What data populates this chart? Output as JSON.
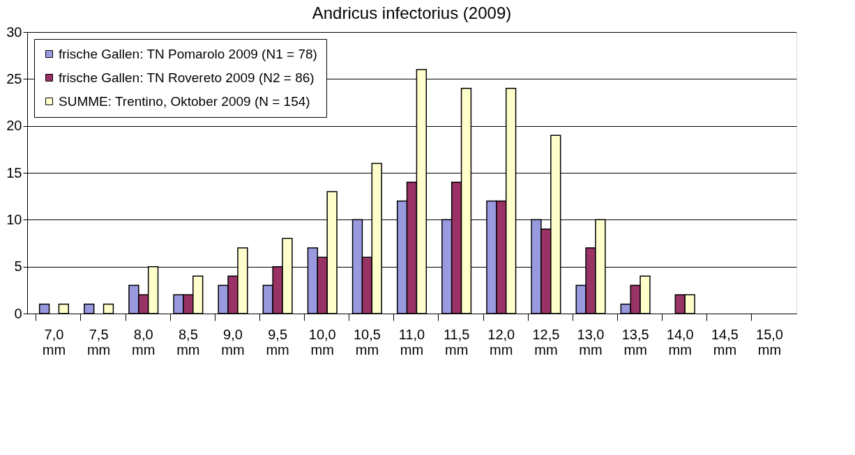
{
  "chart_data": {
    "type": "bar",
    "title": "Andricus infectorius (2009)",
    "categories": [
      "7,0 mm",
      "7,5 mm",
      "8,0 mm",
      "8,5 mm",
      "9,0 mm",
      "9,5 mm",
      "10,0 mm",
      "10,5 mm",
      "11,0 mm",
      "11,5 mm",
      "12,0 mm",
      "12,5 mm",
      "13,0 mm",
      "13,5 mm",
      "14,0 mm",
      "14,5 mm",
      "15,0 mm"
    ],
    "series": [
      {
        "name": "frische Gallen: TN Pomarolo 2009 (N1 = 78)",
        "color": "#9999e0",
        "values": [
          1,
          1,
          3,
          2,
          3,
          3,
          7,
          10,
          12,
          10,
          12,
          10,
          3,
          1,
          0,
          0,
          0
        ]
      },
      {
        "name": "frische Gallen: TN Rovereto 2009 (N2 = 86)",
        "color": "#993366",
        "values": [
          0,
          0,
          2,
          2,
          4,
          5,
          6,
          6,
          14,
          14,
          12,
          9,
          7,
          3,
          2,
          0,
          0
        ]
      },
      {
        "name": "SUMME: Trentino, Oktober 2009 (N = 154)",
        "color": "#ffffcc",
        "values": [
          1,
          1,
          5,
          4,
          7,
          8,
          13,
          16,
          26,
          24,
          24,
          19,
          10,
          4,
          2,
          0,
          0
        ]
      }
    ],
    "ylim": [
      0,
      30
    ],
    "yticks": [
      0,
      5,
      10,
      15,
      20,
      25,
      30
    ],
    "grid": "y",
    "legend": "top left"
  }
}
